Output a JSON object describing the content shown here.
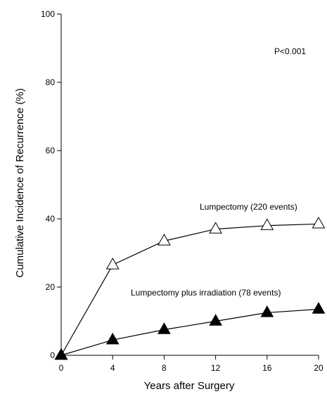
{
  "chart_data": {
    "type": "line",
    "title": "",
    "xlabel": "Years after Surgery",
    "ylabel": "Cumulative Incidence of Recurrence (%)",
    "xlim": [
      0,
      20
    ],
    "ylim": [
      0,
      100
    ],
    "xticks": [
      0,
      4,
      8,
      12,
      16,
      20
    ],
    "yticks": [
      0,
      20,
      40,
      60,
      80,
      100
    ],
    "grid": false,
    "annotation": "P<0.001",
    "series": [
      {
        "name": "Lumpectomy (220 events)",
        "marker": "open-triangle",
        "color": "#000000",
        "x": [
          0,
          4,
          8,
          12,
          16,
          20
        ],
        "y": [
          0,
          26.5,
          33.5,
          37,
          38,
          38.5
        ]
      },
      {
        "name": "Lumpectomy plus irradiation (78 events)",
        "marker": "filled-triangle",
        "color": "#000000",
        "x": [
          0,
          4,
          8,
          12,
          16,
          20
        ],
        "y": [
          0,
          4.5,
          7.5,
          10,
          12.5,
          13.5
        ]
      }
    ]
  }
}
